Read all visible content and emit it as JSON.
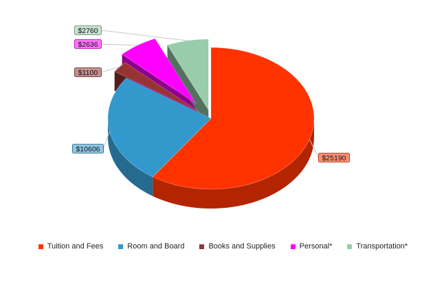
{
  "chart_data": {
    "type": "pie",
    "style": "3d-exploded",
    "categories": [
      "Tuition and Fees",
      "Room and Board",
      "Books and Supplies",
      "Personal*",
      "Transportation*"
    ],
    "values": [
      25190,
      10606,
      1100,
      2636,
      2760
    ],
    "data_labels": [
      "$25190",
      "$10606",
      "$1100",
      "$2636",
      "$2760"
    ],
    "colors": [
      "#ff3300",
      "#3399cc",
      "#993333",
      "#ff00ff",
      "#99ccaa"
    ],
    "legend_position": "bottom",
    "title": ""
  }
}
